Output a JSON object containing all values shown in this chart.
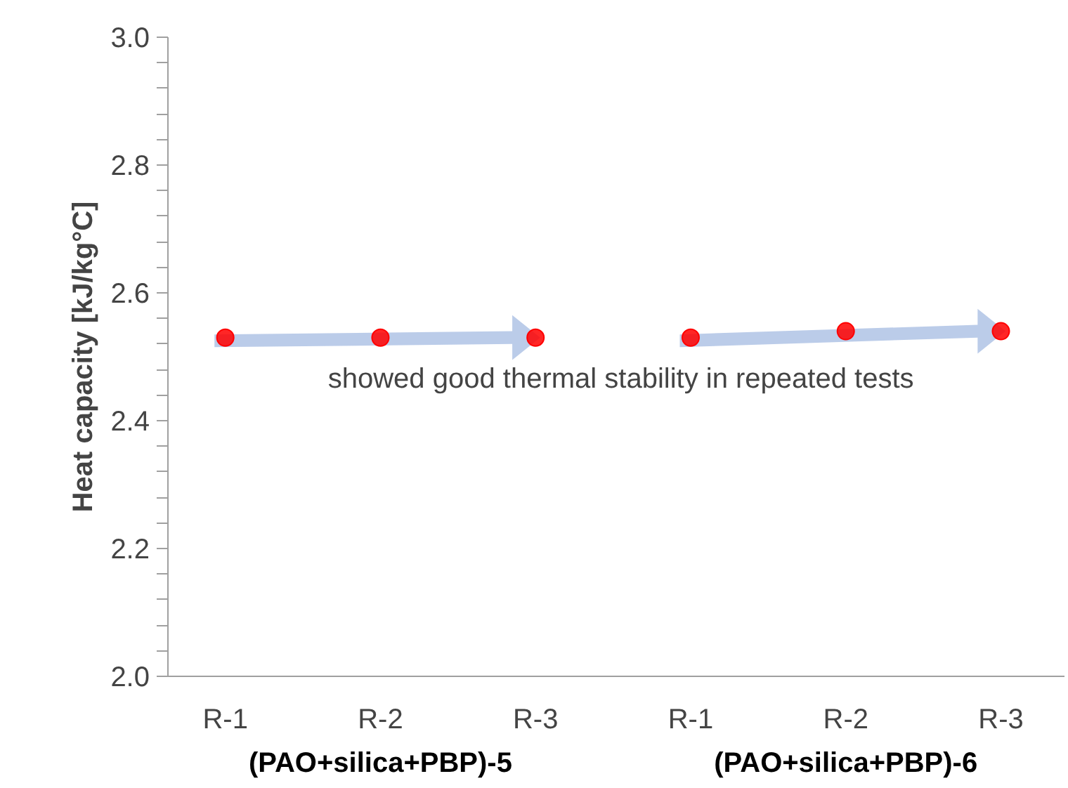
{
  "chart_data": {
    "type": "scatter",
    "ylabel": "Heat capacity [kJ/kg°C]",
    "categories": [
      "R-1",
      "R-2",
      "R-3",
      "R-1",
      "R-2",
      "R-3"
    ],
    "values": [
      2.53,
      2.53,
      2.53,
      2.53,
      2.54,
      2.54
    ],
    "color": "#ff0000",
    "marker": "circle",
    "ylim": [
      2.0,
      3.0
    ],
    "yticks": [
      {
        "value": 2.0,
        "label": "2.0"
      },
      {
        "value": 2.2,
        "label": "2.2"
      },
      {
        "value": 2.4,
        "label": "2.4"
      },
      {
        "value": 2.6,
        "label": "2.6"
      },
      {
        "value": 2.8,
        "label": "2.8"
      },
      {
        "value": 3.0,
        "label": "3.0"
      }
    ],
    "grid": false,
    "annotations": [
      "(PAO+silica+PBP)-5",
      "(PAO+silica+PBP)-6",
      {
        "text": "showed good thermal stability in repeated tests"
      }
    ]
  }
}
